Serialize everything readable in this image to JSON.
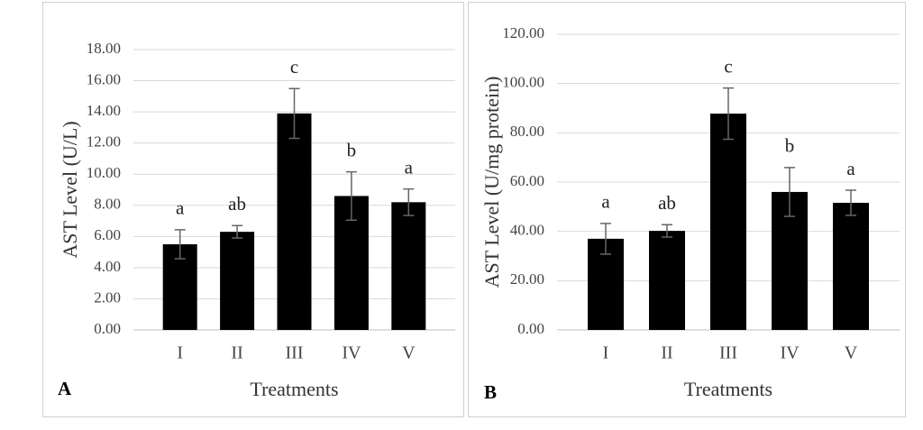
{
  "chart_data": [
    {
      "type": "bar",
      "panel_label": "A",
      "ylabel": "AST Level (U/L)",
      "xlabel": "Treatments",
      "categories": [
        "I",
        "II",
        "III",
        "IV",
        "V"
      ],
      "values": [
        5.5,
        6.3,
        13.9,
        8.6,
        8.2
      ],
      "errors": [
        0.93,
        0.4,
        1.6,
        1.55,
        0.85
      ],
      "annotations": [
        "a",
        "ab",
        "c",
        "b",
        "a"
      ],
      "color": "#000000",
      "grid": true,
      "ylim": [
        0,
        18
      ],
      "yticks": [
        {
          "value": 0,
          "label": "0.00"
        },
        {
          "value": 2,
          "label": "2.00"
        },
        {
          "value": 4,
          "label": "4.00"
        },
        {
          "value": 6,
          "label": "6.00"
        },
        {
          "value": 8,
          "label": "8.00"
        },
        {
          "value": 10,
          "label": "10.00"
        },
        {
          "value": 12,
          "label": "12.00"
        },
        {
          "value": 14,
          "label": "14.00"
        },
        {
          "value": 16,
          "label": "16.00"
        },
        {
          "value": 18,
          "label": "18.00"
        }
      ]
    },
    {
      "type": "bar",
      "panel_label": "B",
      "ylabel": "AST Level (U/mg protein)",
      "xlabel": "Treatments",
      "categories": [
        "I",
        "II",
        "III",
        "IV",
        "V"
      ],
      "values": [
        37,
        40.2,
        87.8,
        56,
        51.6
      ],
      "errors": [
        6.2,
        2.5,
        10.4,
        9.9,
        5.1
      ],
      "annotations": [
        "a",
        "ab",
        "c",
        "b",
        "a"
      ],
      "color": "#000000",
      "grid": true,
      "ylim": [
        0,
        120
      ],
      "yticks": [
        {
          "value": 0,
          "label": "0.00"
        },
        {
          "value": 20,
          "label": "20.00"
        },
        {
          "value": 40,
          "label": "40.00"
        },
        {
          "value": 60,
          "label": "60.00"
        },
        {
          "value": 80,
          "label": "80.00"
        },
        {
          "value": 100,
          "label": "100.00"
        },
        {
          "value": 120,
          "label": "120.00"
        }
      ]
    }
  ]
}
